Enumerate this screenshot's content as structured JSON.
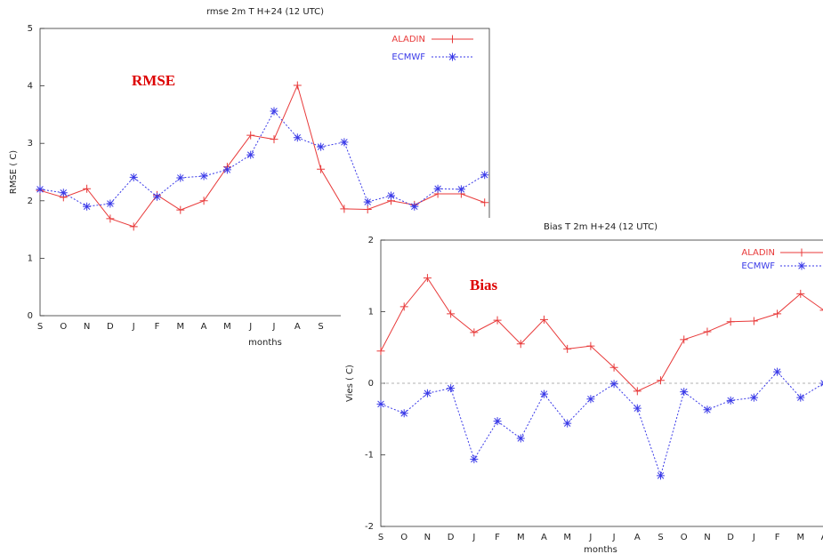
{
  "chart_data": [
    {
      "type": "line",
      "title": "rmse 2m T H+24 (12 UTC)",
      "y_label": "RMSE ( C)",
      "x_label": "months",
      "annotation": "RMSE",
      "categories": [
        "S",
        "O",
        "N",
        "D",
        "J",
        "F",
        "M",
        "A",
        "M",
        "J",
        "J",
        "A",
        "S",
        null,
        null,
        null,
        null,
        null,
        null,
        null
      ],
      "series": [
        {
          "name": "ALADIN",
          "color": "#e83a3a",
          "marker": "plus",
          "dash": false,
          "values": [
            2.18,
            2.06,
            2.21,
            1.69,
            1.55,
            2.1,
            1.84,
            2.0,
            2.59,
            3.14,
            3.07,
            4.01,
            2.55,
            1.86,
            1.85,
            2.0,
            1.93,
            2.12,
            2.12,
            1.97
          ]
        },
        {
          "name": "ECMWF",
          "color": "#3a3ae8",
          "marker": "asterisk",
          "dash": true,
          "values": [
            2.2,
            2.14,
            1.9,
            1.95,
            2.41,
            2.07,
            2.4,
            2.43,
            2.54,
            2.8,
            3.56,
            3.1,
            2.94,
            3.02,
            1.98,
            2.09,
            1.9,
            2.21,
            2.2,
            2.45
          ]
        }
      ],
      "ylim": [
        0,
        5
      ],
      "yticks": [
        0,
        1,
        2,
        3,
        4,
        5
      ],
      "grid": false,
      "zero_line": false,
      "legend": "top right"
    },
    {
      "type": "line",
      "title": "Bias T 2m H+24 (12 UTC)",
      "y_label": "Vies ( C)",
      "x_label": "months",
      "annotation": "Bias",
      "categories": [
        "S",
        "O",
        "N",
        "D",
        "J",
        "F",
        "M",
        "A",
        "M",
        "J",
        "J",
        "A",
        "S",
        "O",
        "N",
        "D",
        "J",
        "F",
        "M",
        "A"
      ],
      "series": [
        {
          "name": "ALADIN",
          "color": "#e83a3a",
          "marker": "plus",
          "dash": false,
          "values": [
            0.45,
            1.07,
            1.47,
            0.97,
            0.71,
            0.88,
            0.55,
            0.89,
            0.48,
            0.52,
            0.22,
            -0.11,
            0.04,
            0.61,
            0.72,
            0.86,
            0.87,
            0.97,
            1.25,
            1.02
          ]
        },
        {
          "name": "ECMWF",
          "color": "#3a3ae8",
          "marker": "asterisk",
          "dash": true,
          "values": [
            -0.29,
            -0.42,
            -0.14,
            -0.07,
            -1.06,
            -0.53,
            -0.77,
            -0.15,
            -0.56,
            -0.22,
            -0.01,
            -0.35,
            -1.29,
            -0.12,
            -0.37,
            -0.24,
            -0.2,
            0.16,
            -0.2,
            0.0
          ]
        }
      ],
      "ylim": [
        -2,
        2
      ],
      "yticks": [
        -2,
        -1,
        0,
        1,
        2
      ],
      "grid": false,
      "zero_line": true,
      "legend": "top right"
    }
  ]
}
